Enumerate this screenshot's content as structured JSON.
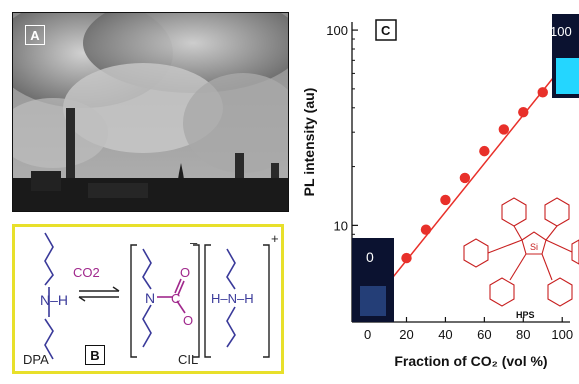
{
  "panel_a": {
    "label": "A"
  },
  "panel_b": {
    "label": "B",
    "reactant_label": "DPA",
    "reagent": "CO2",
    "product_label": "CIL",
    "anion_charge": "–",
    "cation_charge": "+",
    "colors": {
      "border": "#e8e02a",
      "bond": "#3a3a9a",
      "carbamate": "#a0288c"
    }
  },
  "panel_c": {
    "label": "C",
    "inset_low": "0",
    "inset_high": "100",
    "molecule_label": "HPS"
  },
  "chart_data": {
    "type": "scatter",
    "xlabel": "Fraction of CO₂ (vol %)",
    "ylabel": "PL intensity (au)",
    "yscale": "log",
    "xlim": [
      -8,
      104
    ],
    "ylim": [
      3.2,
      110
    ],
    "x_ticks": [
      0,
      20,
      40,
      60,
      80,
      100
    ],
    "y_ticks": [
      10,
      100
    ],
    "marker_color": "#e8302a",
    "series": [
      {
        "x": [
          10,
          20,
          30,
          40,
          50,
          60,
          70,
          80,
          90
        ],
        "y": [
          5.0,
          6.8,
          9.5,
          13.5,
          17.5,
          24,
          31,
          38,
          48
        ]
      }
    ],
    "fit_line": {
      "x": [
        8,
        96
      ],
      "y": [
        4.7,
        58
      ]
    }
  }
}
